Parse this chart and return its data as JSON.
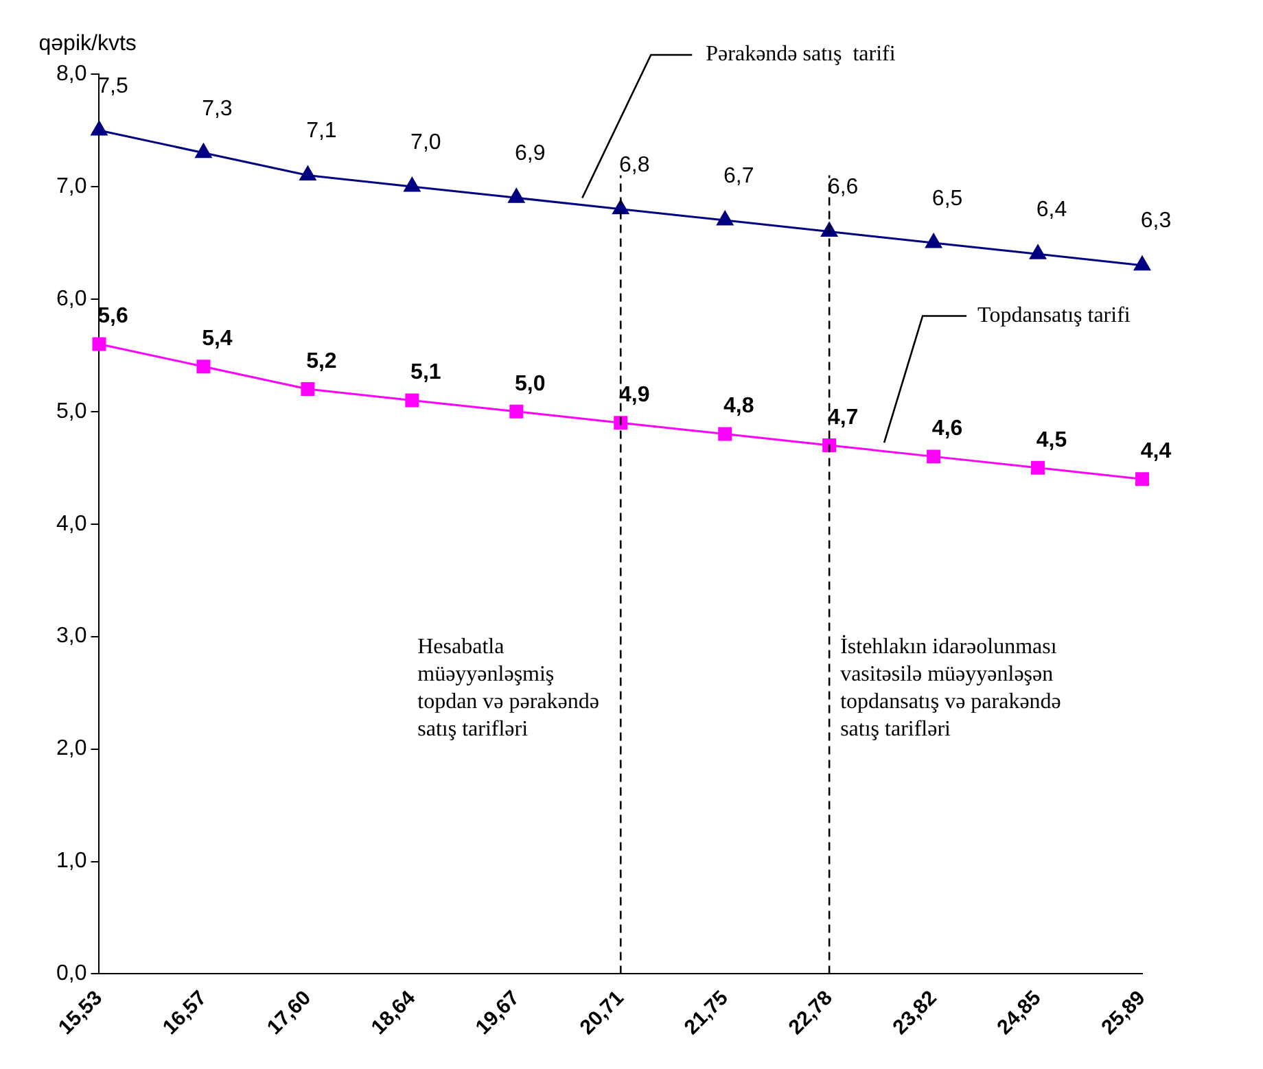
{
  "chart_data": {
    "type": "line",
    "ylabel": "qəpik/kvts",
    "categories": [
      "15,53",
      "16,57",
      "17,60",
      "18,64",
      "19,67",
      "20,71",
      "21,75",
      "22,78",
      "23,82",
      "24,85",
      "25,89"
    ],
    "series": [
      {
        "name": "Pərakəndə satış  tarifi",
        "color": "#000080",
        "marker": "triangle",
        "values": [
          7.5,
          7.3,
          7.1,
          7.0,
          6.9,
          6.8,
          6.7,
          6.6,
          6.5,
          6.4,
          6.3
        ],
        "value_labels": [
          "7,5",
          "7,3",
          "7,1",
          "7,0",
          "6,9",
          "6,8",
          "6,7",
          "6,6",
          "6,5",
          "6,4",
          "6,3"
        ]
      },
      {
        "name": "Topdansatış tarifi",
        "color": "#ff00ff",
        "marker": "square",
        "values": [
          5.6,
          5.4,
          5.2,
          5.1,
          5.0,
          4.9,
          4.8,
          4.7,
          4.6,
          4.5,
          4.4
        ],
        "value_labels": [
          "5,6",
          "5,4",
          "5,2",
          "5,1",
          "5,0",
          "4,9",
          "4,8",
          "4,7",
          "4,6",
          "4,5",
          "4,4"
        ]
      }
    ],
    "ylim": [
      0,
      8
    ],
    "yticks": [
      {
        "value": 0,
        "label": "0,0"
      },
      {
        "value": 1,
        "label": "1,0"
      },
      {
        "value": 2,
        "label": "2,0"
      },
      {
        "value": 3,
        "label": "3,0"
      },
      {
        "value": 4,
        "label": "4,0"
      },
      {
        "value": 5,
        "label": "5,0"
      },
      {
        "value": 6,
        "label": "6,0"
      },
      {
        "value": 7,
        "label": "7,0"
      },
      {
        "value": 8,
        "label": "8,0"
      }
    ],
    "ref_lines": [
      {
        "axis": "x",
        "value": "20,71",
        "line_style": "dashed",
        "color": "#000000",
        "label": "Hesabatla müəyyənləşmiş topdan və pərakəndə satış tarifləri"
      },
      {
        "axis": "x",
        "value": "22,78",
        "line_style": "dashed",
        "color": "#000000",
        "label": "İstehlakın idarəolunması vasitəsilə müəyyənləşən topdansatış və parakəndə satış tarifləri"
      }
    ],
    "grid": false,
    "legend": false,
    "line_style": "solid"
  }
}
